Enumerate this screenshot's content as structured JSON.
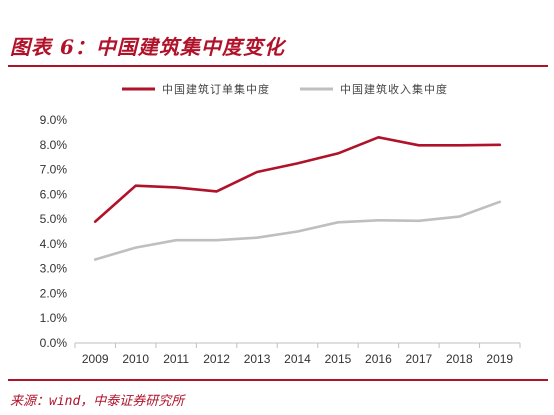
{
  "header": {
    "title": "图表 6：中国建筑集中度变化"
  },
  "footer": {
    "source": "来源：wind，中泰证券研究所"
  },
  "colors": {
    "accent": "#b0122a",
    "series1": "#b0122a",
    "series2": "#bfbfbf"
  },
  "chart_data": {
    "type": "line",
    "title": "",
    "x": [
      2009,
      2010,
      2011,
      2012,
      2013,
      2014,
      2015,
      2016,
      2017,
      2018,
      2019
    ],
    "x_tick_labels": [
      "2009",
      "2010",
      "2011",
      "2012",
      "2013",
      "2014",
      "2015",
      "2016",
      "2017",
      "2018",
      "2019"
    ],
    "y_tick_labels": [
      "0.0%",
      "1.0%",
      "2.0%",
      "3.0%",
      "4.0%",
      "5.0%",
      "6.0%",
      "7.0%",
      "8.0%",
      "9.0%"
    ],
    "ylim": [
      0,
      9
    ],
    "y_unit": "%",
    "grid": false,
    "legend_position": "top",
    "series": [
      {
        "name": "中国建筑订单集中度",
        "color": "#b0122a",
        "values": [
          4.9,
          6.35,
          6.28,
          6.12,
          6.9,
          7.25,
          7.65,
          8.3,
          7.98,
          7.98,
          8.0
        ]
      },
      {
        "name": "中国建筑收入集中度",
        "color": "#bfbfbf",
        "values": [
          3.37,
          3.85,
          4.15,
          4.15,
          4.25,
          4.5,
          4.87,
          4.95,
          4.93,
          5.1,
          5.7
        ]
      }
    ]
  }
}
